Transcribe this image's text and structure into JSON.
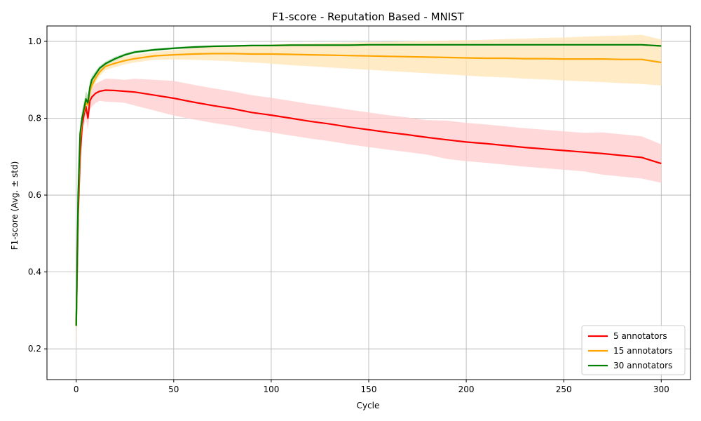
{
  "chart_data": {
    "type": "line",
    "title": "F1-score - Reputation Based - MNIST",
    "xlabel": "Cycle",
    "ylabel": "F1-score (Avg. ± std)",
    "xlim": [
      -15,
      315
    ],
    "ylim": [
      0.12,
      1.04
    ],
    "xticks": [
      0,
      50,
      100,
      150,
      200,
      250,
      300
    ],
    "yticks": [
      0.2,
      0.4,
      0.6,
      0.8,
      1.0
    ],
    "xtick_labels": [
      "0",
      "50",
      "100",
      "150",
      "200",
      "250",
      "300"
    ],
    "ytick_labels": [
      "0.2",
      "0.4",
      "0.6",
      "0.8",
      "1.0"
    ],
    "grid": true,
    "legend_position": "bottom-right",
    "series": [
      {
        "name": "5 annotators",
        "color": "#ff0000",
        "band_color": "#ffcccc",
        "x": [
          0,
          1,
          2,
          3,
          4,
          5,
          6,
          7,
          8,
          10,
          12,
          15,
          20,
          25,
          30,
          40,
          50,
          60,
          70,
          80,
          90,
          100,
          110,
          120,
          130,
          140,
          150,
          160,
          170,
          180,
          190,
          200,
          210,
          220,
          230,
          240,
          250,
          260,
          270,
          280,
          290,
          300
        ],
        "y": [
          0.26,
          0.55,
          0.7,
          0.78,
          0.81,
          0.83,
          0.8,
          0.845,
          0.855,
          0.865,
          0.87,
          0.873,
          0.872,
          0.87,
          0.868,
          0.86,
          0.852,
          0.842,
          0.833,
          0.825,
          0.815,
          0.808,
          0.8,
          0.792,
          0.785,
          0.777,
          0.77,
          0.763,
          0.757,
          0.75,
          0.744,
          0.738,
          0.734,
          0.729,
          0.724,
          0.72,
          0.716,
          0.712,
          0.708,
          0.703,
          0.698,
          0.682
        ],
        "std": [
          0.09,
          0.08,
          0.04,
          0.03,
          0.03,
          0.03,
          0.03,
          0.025,
          0.025,
          0.025,
          0.025,
          0.03,
          0.03,
          0.03,
          0.035,
          0.04,
          0.045,
          0.045,
          0.045,
          0.045,
          0.045,
          0.045,
          0.045,
          0.045,
          0.045,
          0.045,
          0.045,
          0.045,
          0.045,
          0.045,
          0.05,
          0.05,
          0.05,
          0.05,
          0.05,
          0.05,
          0.05,
          0.05,
          0.055,
          0.055,
          0.055,
          0.05
        ]
      },
      {
        "name": "15 annotators",
        "color": "#ffa500",
        "band_color": "#ffe4b3",
        "x": [
          0,
          1,
          2,
          3,
          4,
          5,
          6,
          7,
          8,
          10,
          12,
          15,
          20,
          25,
          30,
          40,
          50,
          60,
          70,
          80,
          90,
          100,
          110,
          120,
          130,
          140,
          150,
          160,
          170,
          180,
          190,
          200,
          210,
          220,
          230,
          240,
          250,
          260,
          270,
          280,
          290,
          300
        ],
        "y": [
          0.26,
          0.58,
          0.74,
          0.8,
          0.82,
          0.84,
          0.835,
          0.87,
          0.885,
          0.905,
          0.92,
          0.935,
          0.943,
          0.95,
          0.955,
          0.962,
          0.965,
          0.967,
          0.968,
          0.968,
          0.967,
          0.967,
          0.966,
          0.965,
          0.964,
          0.963,
          0.962,
          0.961,
          0.96,
          0.959,
          0.958,
          0.957,
          0.956,
          0.956,
          0.955,
          0.955,
          0.954,
          0.954,
          0.954,
          0.953,
          0.953,
          0.945
        ],
        "std": [
          0.05,
          0.04,
          0.03,
          0.02,
          0.02,
          0.02,
          0.02,
          0.015,
          0.015,
          0.012,
          0.01,
          0.01,
          0.01,
          0.01,
          0.01,
          0.01,
          0.012,
          0.015,
          0.018,
          0.02,
          0.022,
          0.025,
          0.028,
          0.03,
          0.032,
          0.034,
          0.036,
          0.038,
          0.04,
          0.042,
          0.044,
          0.046,
          0.048,
          0.05,
          0.052,
          0.054,
          0.056,
          0.058,
          0.06,
          0.062,
          0.064,
          0.06
        ]
      },
      {
        "name": "30 annotators",
        "color": "#008000",
        "band_color": "#b3d9b3",
        "x": [
          0,
          1,
          2,
          3,
          4,
          5,
          6,
          7,
          8,
          10,
          12,
          15,
          20,
          25,
          30,
          40,
          50,
          60,
          70,
          80,
          90,
          100,
          110,
          120,
          130,
          140,
          150,
          160,
          170,
          180,
          190,
          200,
          210,
          220,
          230,
          240,
          250,
          260,
          270,
          280,
          290,
          300
        ],
        "y": [
          0.26,
          0.6,
          0.76,
          0.8,
          0.825,
          0.85,
          0.84,
          0.88,
          0.9,
          0.915,
          0.93,
          0.942,
          0.955,
          0.965,
          0.972,
          0.978,
          0.982,
          0.985,
          0.987,
          0.988,
          0.989,
          0.989,
          0.99,
          0.99,
          0.99,
          0.99,
          0.991,
          0.991,
          0.991,
          0.991,
          0.991,
          0.991,
          0.991,
          0.991,
          0.991,
          0.991,
          0.991,
          0.991,
          0.991,
          0.991,
          0.991,
          0.988
        ],
        "std": [
          0.04,
          0.03,
          0.02,
          0.02,
          0.02,
          0.02,
          0.02,
          0.015,
          0.01,
          0.008,
          0.006,
          0.005,
          0.005,
          0.004,
          0.004,
          0.003,
          0.003,
          0.003,
          0.002,
          0.002,
          0.002,
          0.002,
          0.002,
          0.002,
          0.002,
          0.002,
          0.002,
          0.002,
          0.002,
          0.002,
          0.002,
          0.002,
          0.002,
          0.002,
          0.002,
          0.002,
          0.002,
          0.002,
          0.002,
          0.002,
          0.002,
          0.002
        ]
      }
    ]
  }
}
